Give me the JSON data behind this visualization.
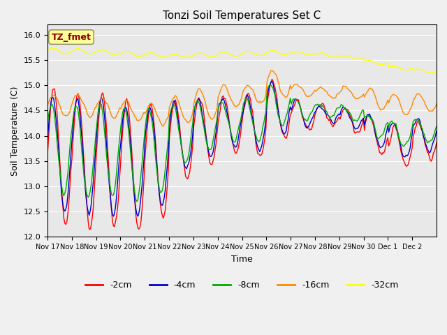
{
  "title": "Tonzi Soil Temperatures Set C",
  "xlabel": "Time",
  "ylabel": "Soil Temperature (C)",
  "ylim": [
    12.0,
    16.2
  ],
  "yticks": [
    12.0,
    12.5,
    13.0,
    13.5,
    14.0,
    14.5,
    15.0,
    15.5,
    16.0
  ],
  "bg_color": "#e8e8e8",
  "line_colors": {
    "-2cm": "#ff0000",
    "-4cm": "#0000cc",
    "-8cm": "#00aa00",
    "-16cm": "#ff8800",
    "-32cm": "#ffff00"
  },
  "legend_label": "TZ_fmet",
  "legend_box_color": "#ffff99",
  "legend_text_color": "#880000",
  "x_tick_labels": [
    "Nov 17",
    "Nov 18",
    "Nov 19",
    "Nov 20",
    "Nov 21",
    "Nov 22",
    "Nov 23",
    "Nov 24",
    "Nov 25",
    "Nov 26",
    "Nov 27",
    "Nov 28",
    "Nov 29",
    "Nov 30",
    "Dec 1",
    "Dec 2"
  ],
  "grid_color": "#ffffff",
  "linewidth": 1.0
}
